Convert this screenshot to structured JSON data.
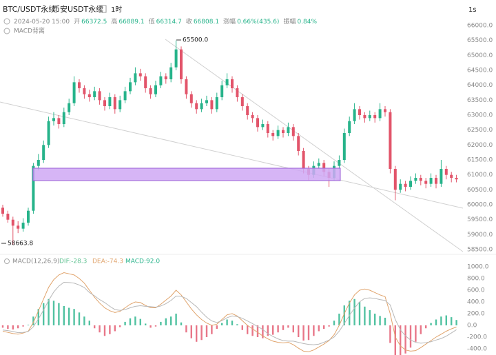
{
  "chart_data": [
    {
      "type": "candlestick",
      "title": "BTC/USDT永续",
      "subtitle": "币安USDT永续",
      "interval": "1时",
      "timeframe_button": "1s",
      "info_date": "2024-05-20 15:00",
      "info": [
        {
          "label": "开",
          "value": "66372.5"
        },
        {
          "label": "高",
          "value": "66889.1"
        },
        {
          "label": "低",
          "value": "66314.7"
        },
        {
          "label": "收",
          "value": "66808.1"
        },
        {
          "label": "涨幅",
          "value": "0.66%(435.6)"
        },
        {
          "label": "振幅",
          "value": "0.84%"
        }
      ],
      "indicator_label": "MACD背离",
      "annotations": [
        "65500.0",
        "58663.8"
      ],
      "up_color": "#26b38a",
      "down_color": "#e2546a",
      "ylim": [
        58300,
        66300
      ],
      "yticks": [
        {
          "value": 66000,
          "label": "66000.0"
        },
        {
          "value": 65500,
          "label": "65500.0"
        },
        {
          "value": 65000,
          "label": "65000.0"
        },
        {
          "value": 64500,
          "label": "64500.0"
        },
        {
          "value": 64000,
          "label": "64000.0"
        },
        {
          "value": 63500,
          "label": "63500.0"
        },
        {
          "value": 63000,
          "label": "63000.0"
        },
        {
          "value": 62500,
          "label": "62500.0"
        },
        {
          "value": 62000,
          "label": "62000.0"
        },
        {
          "value": 61500,
          "label": "61500.0"
        },
        {
          "value": 61000,
          "label": "61000.0"
        },
        {
          "value": 60500,
          "label": "60500.0"
        },
        {
          "value": 60000,
          "label": "60000.0"
        },
        {
          "value": 59500,
          "label": "59500.0"
        },
        {
          "value": 59000,
          "label": "59000.0"
        },
        {
          "value": 58500,
          "label": "58500.0"
        }
      ],
      "grid": false,
      "ohlc": [
        [
          59900,
          60000,
          59600,
          59700
        ],
        [
          59700,
          59800,
          59400,
          59500
        ],
        [
          59500,
          59600,
          58663.8,
          59300
        ],
        [
          59300,
          59450,
          59050,
          59200
        ],
        [
          59200,
          59550,
          59100,
          59400
        ],
        [
          59400,
          59900,
          59300,
          59800
        ],
        [
          59800,
          61400,
          59700,
          61300
        ],
        [
          61300,
          61700,
          61150,
          61500
        ],
        [
          61500,
          62150,
          61400,
          62000
        ],
        [
          62000,
          62950,
          61900,
          62800
        ],
        [
          62800,
          63100,
          62650,
          62900
        ],
        [
          62900,
          63000,
          62550,
          62700
        ],
        [
          62700,
          63250,
          62600,
          63100
        ],
        [
          63100,
          63550,
          63000,
          63400
        ],
        [
          63400,
          64300,
          63300,
          64100
        ],
        [
          64100,
          64200,
          63750,
          63900
        ],
        [
          63900,
          64000,
          63550,
          63700
        ],
        [
          63700,
          63850,
          63450,
          63600
        ],
        [
          63600,
          63950,
          63500,
          63800
        ],
        [
          63800,
          63900,
          63350,
          63500
        ],
        [
          63500,
          63600,
          63150,
          63300
        ],
        [
          63300,
          63750,
          63200,
          63600
        ],
        [
          63600,
          63700,
          63050,
          63200
        ],
        [
          63200,
          63650,
          63100,
          63500
        ],
        [
          63500,
          63950,
          63400,
          63800
        ],
        [
          63800,
          64250,
          63700,
          64100
        ],
        [
          64100,
          64600,
          64000,
          64400
        ],
        [
          64400,
          64550,
          64150,
          64300
        ],
        [
          64300,
          64400,
          63750,
          63900
        ],
        [
          63900,
          64000,
          63550,
          63700
        ],
        [
          63700,
          64150,
          63600,
          64000
        ],
        [
          64000,
          64450,
          63900,
          64300
        ],
        [
          64300,
          64400,
          64050,
          64200
        ],
        [
          64200,
          64750,
          64100,
          64600
        ],
        [
          64600,
          65500,
          64500,
          65200
        ],
        [
          65200,
          65300,
          64050,
          64200
        ],
        [
          64200,
          64300,
          63550,
          63700
        ],
        [
          63700,
          63800,
          63250,
          63400
        ],
        [
          63400,
          63500,
          63050,
          63200
        ],
        [
          63200,
          63550,
          63100,
          63400
        ],
        [
          63400,
          63650,
          63300,
          63500
        ],
        [
          63500,
          63600,
          63050,
          63200
        ],
        [
          63200,
          63750,
          63100,
          63600
        ],
        [
          63600,
          64150,
          63500,
          64000
        ],
        [
          64000,
          64400,
          63900,
          64200
        ],
        [
          64200,
          64300,
          63750,
          63900
        ],
        [
          63900,
          64000,
          63450,
          63600
        ],
        [
          63600,
          63700,
          63150,
          63300
        ],
        [
          63300,
          63400,
          62850,
          63000
        ],
        [
          63000,
          63100,
          62750,
          62900
        ],
        [
          62900,
          63000,
          62450,
          62600
        ],
        [
          62600,
          62850,
          62500,
          62700
        ],
        [
          62700,
          62800,
          62250,
          62400
        ],
        [
          62400,
          62500,
          62150,
          62300
        ],
        [
          62300,
          62650,
          62200,
          62500
        ],
        [
          62500,
          62600,
          62250,
          62400
        ],
        [
          62400,
          62750,
          62300,
          62600
        ],
        [
          62600,
          62700,
          62150,
          62300
        ],
        [
          62300,
          62400,
          61650,
          61800
        ],
        [
          61800,
          61900,
          61050,
          61200
        ],
        [
          61200,
          61300,
          60800,
          61000
        ],
        [
          61000,
          61450,
          60900,
          61300
        ],
        [
          61300,
          61550,
          61200,
          61400
        ],
        [
          61400,
          61500,
          60950,
          61100
        ],
        [
          61100,
          61200,
          60600,
          60900
        ],
        [
          60900,
          61450,
          60800,
          61300
        ],
        [
          61300,
          61650,
          61200,
          61500
        ],
        [
          61500,
          62550,
          61400,
          62400
        ],
        [
          62400,
          62950,
          62300,
          62800
        ],
        [
          62800,
          63400,
          62700,
          63200
        ],
        [
          63200,
          63300,
          62850,
          63000
        ],
        [
          63000,
          63100,
          62750,
          62900
        ],
        [
          62900,
          63150,
          62800,
          63000
        ],
        [
          63000,
          63100,
          62750,
          62900
        ],
        [
          62900,
          63400,
          62800,
          63200
        ],
        [
          63200,
          63300,
          62950,
          63100
        ],
        [
          63100,
          63200,
          61050,
          61200
        ],
        [
          61200,
          61300,
          60150,
          60500
        ],
        [
          60500,
          60850,
          60400,
          60700
        ],
        [
          60700,
          60800,
          60450,
          60600
        ],
        [
          60600,
          60950,
          60500,
          60800
        ],
        [
          60800,
          61050,
          60700,
          60900
        ],
        [
          60900,
          61000,
          60650,
          60800
        ],
        [
          60800,
          60900,
          60550,
          60700
        ],
        [
          60700,
          61050,
          60600,
          60900
        ],
        [
          60900,
          61000,
          60550,
          60700
        ],
        [
          60700,
          61500,
          60600,
          61200
        ],
        [
          61200,
          61300,
          60850,
          61000
        ],
        [
          61000,
          61100,
          60750,
          60900
        ],
        [
          60900,
          61000,
          60750,
          60850
        ]
      ]
    },
    {
      "type": "macd",
      "title": "MACD(12,26,9)",
      "legend": [
        {
          "label": "DIF:-28.3",
          "color": "#5cc08f"
        },
        {
          "label": "DEA:-74.3",
          "color": "#e0a36b"
        },
        {
          "label": "MACD:92.0",
          "color": "#26b38a"
        }
      ],
      "ylim": [
        -500,
        1100
      ],
      "yticks": [
        {
          "value": 1000,
          "label": "1000.0"
        },
        {
          "value": 800,
          "label": "800.0"
        },
        {
          "value": 600,
          "label": "600.0"
        },
        {
          "value": 400,
          "label": "400.0"
        },
        {
          "value": 200,
          "label": "200.0"
        },
        {
          "value": 0,
          "label": "0.0"
        },
        {
          "value": -200,
          "label": "-200.0"
        },
        {
          "value": -400,
          "label": "-400.0"
        }
      ],
      "up_color": "#26b38a",
      "down_color": "#e2546a",
      "histogram": [
        -40,
        -60,
        -70,
        -50,
        -20,
        10,
        150,
        280,
        380,
        450,
        420,
        380,
        330,
        300,
        280,
        220,
        150,
        80,
        -50,
        -120,
        -180,
        -150,
        -100,
        -30,
        60,
        120,
        150,
        110,
        30,
        -40,
        -20,
        60,
        120,
        150,
        200,
        50,
        -120,
        -220,
        -280,
        -250,
        -200,
        -150,
        -60,
        40,
        100,
        80,
        20,
        -80,
        -150,
        -180,
        -200,
        -220,
        -180,
        -160,
        -120,
        -80,
        -40,
        -120,
        -200,
        -260,
        -250,
        -180,
        -100,
        -60,
        -20,
        80,
        200,
        340,
        420,
        450,
        400,
        320,
        260,
        200,
        160,
        130,
        -300,
        -600,
        -550,
        -480,
        -380,
        -280,
        -150,
        -50,
        40,
        100,
        150,
        170,
        140,
        92
      ],
      "series": [
        {
          "color": "#e0a36b",
          "values": [
            -100,
            -120,
            -140,
            -150,
            -130,
            -100,
            50,
            250,
            450,
            650,
            780,
            860,
            900,
            880,
            860,
            800,
            720,
            600,
            480,
            380,
            300,
            250,
            220,
            240,
            300,
            360,
            400,
            390,
            340,
            300,
            300,
            360,
            430,
            500,
            600,
            520,
            400,
            280,
            180,
            100,
            40,
            0,
            20,
            100,
            180,
            200,
            160,
            80,
            0,
            -60,
            -120,
            -180,
            -230,
            -270,
            -290,
            -300,
            -290,
            -330,
            -390,
            -440,
            -450,
            -420,
            -370,
            -320,
            -260,
            -160,
            0,
            200,
            380,
            520,
            600,
            620,
            600,
            560,
            520,
            490,
            200,
            -200,
            -350,
            -420,
            -440,
            -430,
            -380,
            -320,
            -260,
            -200,
            -150,
            -100,
            -60,
            -28.3
          ]
        },
        {
          "color": "#b8b8b8",
          "values": [
            -80,
            -90,
            -105,
            -125,
            -120,
            -105,
            -25,
            110,
            260,
            425,
            570,
            670,
            735,
            730,
            720,
            690,
            645,
            560,
            505,
            440,
            390,
            325,
            270,
            255,
            270,
            300,
            325,
            335,
            325,
            320,
            310,
            330,
            370,
            425,
            500,
            495,
            460,
            390,
            320,
            225,
            140,
            75,
            50,
            80,
            130,
            160,
            150,
            120,
            75,
            30,
            -20,
            -70,
            -140,
            -190,
            -230,
            -260,
            -270,
            -270,
            -290,
            -310,
            -325,
            -330,
            -320,
            -290,
            -250,
            -200,
            -100,
            30,
            170,
            295,
            400,
            460,
            470,
            460,
            440,
            425,
            350,
            100,
            -75,
            -180,
            -250,
            -290,
            -305,
            -295,
            -280,
            -250,
            -225,
            -185,
            -130,
            -74.3
          ]
        }
      ]
    }
  ]
}
